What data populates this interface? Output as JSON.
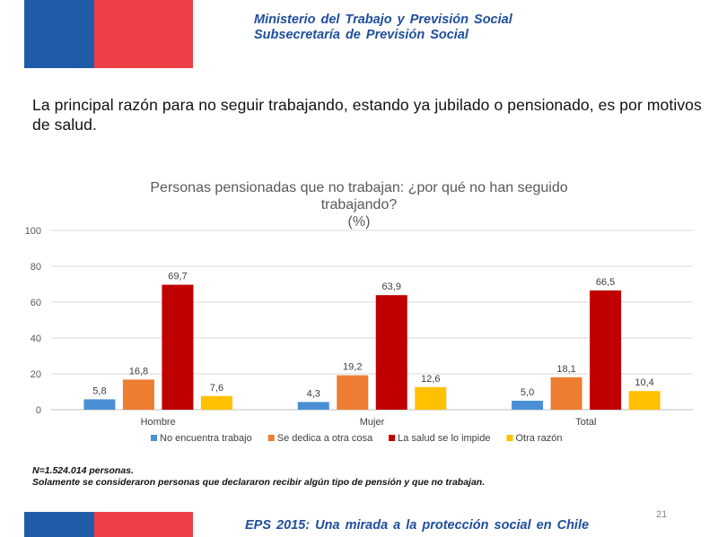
{
  "header": {
    "line1": "Ministerio  del Trabajo y Previsión  Social",
    "line2": "Subsecretaría  de Previsión  Social"
  },
  "headline": "La principal razón para no seguir trabajando, estando ya jubilado o pensionado, es por motivos de salud.",
  "notes": {
    "line1": "N=1.524.014 personas.",
    "line2": "Solamente se consideraron personas que declararon recibir algún tipo de pensión y que no trabajan."
  },
  "footer": {
    "title": "EPS 2015: Una mirada  a la protección  social  en Chile",
    "page": "21"
  },
  "colors": {
    "blue_flag": "#1f5ca8",
    "red_flag": "#ee3f47"
  },
  "chart_data": {
    "type": "bar",
    "title_lines": [
      "Personas pensionadas que no trabajan: ¿por qué no han seguido",
      "trabajando?",
      "(%)"
    ],
    "categories": [
      "Hombre",
      "Mujer",
      "Total"
    ],
    "series": [
      {
        "name": "No encuentra trabajo",
        "color": "#4a8fd6",
        "values": [
          5.8,
          4.3,
          5.0
        ],
        "labels": [
          "5,8",
          "4,3",
          "5,0"
        ]
      },
      {
        "name": "Se dedica a otra cosa",
        "color": "#ed7d31",
        "values": [
          16.8,
          19.2,
          18.1
        ],
        "labels": [
          "16,8",
          "19,2",
          "18,1"
        ]
      },
      {
        "name": "La salud se lo impide",
        "color": "#c00000",
        "values": [
          69.7,
          63.9,
          66.5
        ],
        "labels": [
          "69,7",
          "63,9",
          "66,5"
        ]
      },
      {
        "name": "Otra razón",
        "color": "#ffc000",
        "values": [
          7.6,
          12.6,
          10.4
        ],
        "labels": [
          "7,6",
          "12,6",
          "10,4"
        ]
      }
    ],
    "yticks": [
      "0",
      "20",
      "40",
      "60",
      "80",
      "100"
    ],
    "ylim": [
      0,
      100
    ],
    "grid": true,
    "legend": "bottom"
  }
}
